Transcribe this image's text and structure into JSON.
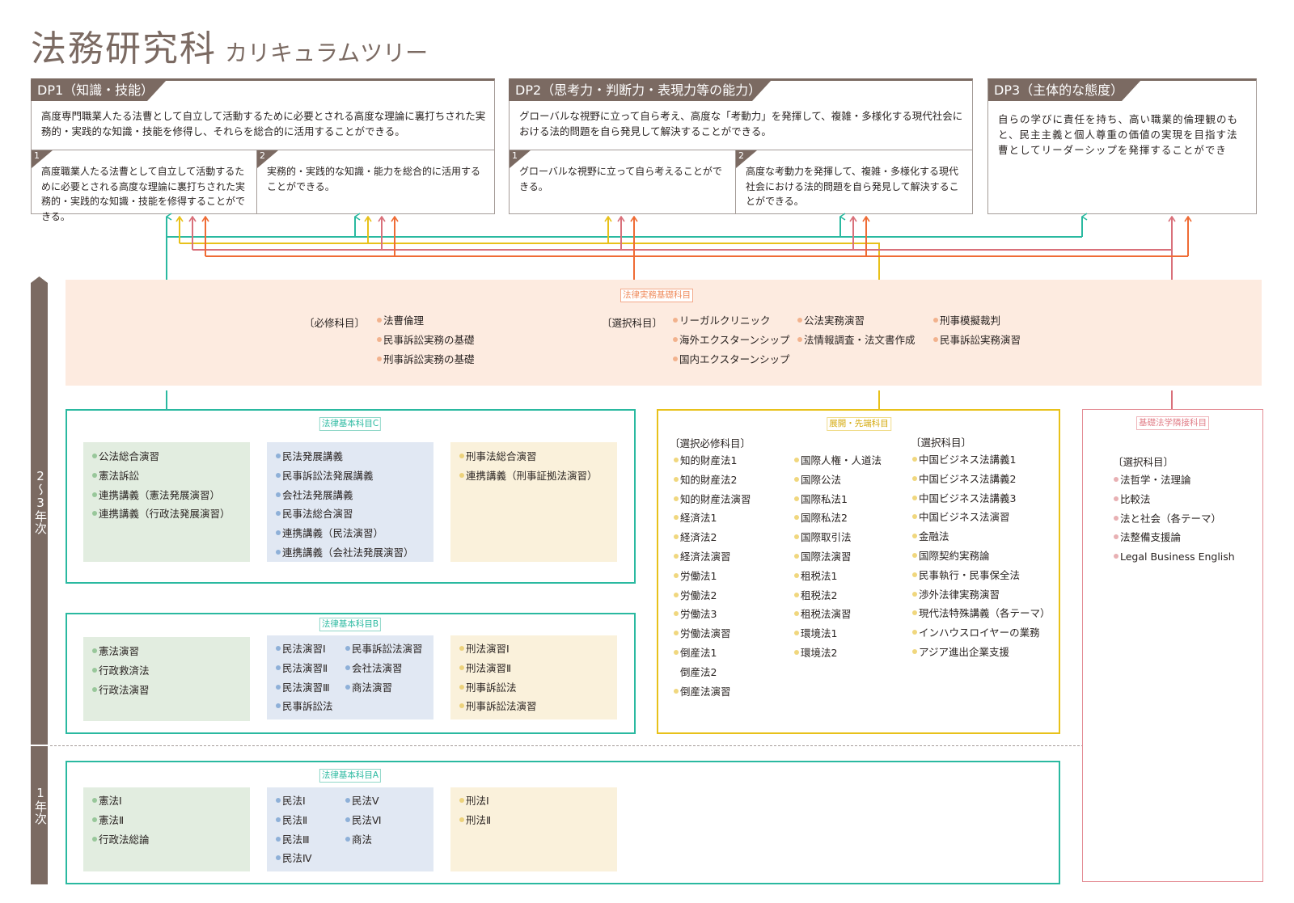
{
  "title": {
    "main": "法務研究科",
    "sub": "カリキュラムツリー"
  },
  "colors": {
    "brown": "#7b6a62",
    "teal": "#2ab9a0",
    "yellow": "#e8c11a",
    "pink": "#d9707a",
    "orange": "#ef6b34",
    "peach_bg": "#fdebe0",
    "green_panel": "#e2ede0",
    "blue_panel": "#e1e8f3",
    "cream_panel": "#faf1db"
  },
  "dp": [
    {
      "title": "DP1（知識・技能）",
      "desc": "高度専門職業人たる法曹として自立して活動するために必要とされる高度な理論に裏打ちされた実務的・実践的な知識・技能を修得し、それらを総合的に活用することができる。",
      "subs": [
        {
          "num": "1",
          "text": "高度職業人たる法曹として自立して活動するために必要とされる高度な理論に裏打ちされた実務的・実践的な知識・技能を修得することができる。"
        },
        {
          "num": "2",
          "text": "実務的・実践的な知識・能力を総合的に活用することができる。"
        }
      ]
    },
    {
      "title": "DP2（思考力・判断力・表現力等の能力）",
      "desc": "グローバルな視野に立って自ら考え、高度な「考動力」を発揮して、複雑・多様化する現代社会における法的問題を自ら発見して解決することができる。",
      "subs": [
        {
          "num": "1",
          "text": "グローバルな視野に立って自ら考えることができる。"
        },
        {
          "num": "2",
          "text": "高度な考動力を発揮して、複雑・多様化する現代社会における法的問題を自ら発見して解決することができる。"
        }
      ]
    },
    {
      "title": "DP3（主体的な態度）",
      "desc": "自らの学びに責任を持ち、高い職業的倫理観のもと、民主主義と個人尊重の価値の実現を目指す法曹としてリーダーシップを発揮することができ"
    }
  ],
  "years": {
    "upper": "2〜3年次",
    "lower": "1年次"
  },
  "practice": {
    "label": "法律実務基礎科目",
    "required_header": "〔必修科目〕",
    "elective_header": "〔選択科目〕",
    "required": [
      [
        "法曹倫理",
        "民事訴訟実務の基礎",
        "刑事訴訟実務の基礎"
      ]
    ],
    "elective": [
      [
        "リーガルクリニック",
        "海外エクスターンシップ",
        "国内エクスターンシップ"
      ],
      [
        "公法実務演習",
        "法情報調査・法文書作成"
      ],
      [
        "刑事模擬裁判",
        "民事訴訟実務演習"
      ]
    ]
  },
  "basicC": {
    "label": "法律基本科目C",
    "green": [
      [
        "公法総合演習",
        "憲法訴訟",
        "連携講義（憲法発展演習）",
        "連携講義（行政法発展演習）"
      ]
    ],
    "blue": [
      [
        "民法発展講義",
        "民事訴訟法発展講義",
        "会社法発展講義",
        "民事法総合演習",
        "連携講義（民法演習）",
        "連携講義（会社法発展演習）"
      ]
    ],
    "cream": [
      [
        "刑事法総合演習",
        "連携講義（刑事証拠法演習）"
      ]
    ]
  },
  "basicB": {
    "label": "法律基本科目B",
    "green": [
      [
        "憲法演習",
        "行政救済法",
        "行政法演習"
      ]
    ],
    "blue": [
      [
        "民法演習Ⅰ",
        "民法演習Ⅱ",
        "民法演習Ⅲ",
        "民事訴訟法"
      ],
      [
        "民事訴訟法演習",
        "会社法演習",
        "商法演習"
      ]
    ],
    "cream": [
      [
        "刑法演習Ⅰ",
        "刑法演習Ⅱ",
        "刑事訴訟法",
        "刑事訴訟法演習"
      ]
    ]
  },
  "basicA": {
    "label": "法律基本科目A",
    "green": [
      [
        "憲法Ⅰ",
        "憲法Ⅱ",
        "行政法総論"
      ]
    ],
    "blue": [
      [
        "民法Ⅰ",
        "民法Ⅱ",
        "民法Ⅲ",
        "民法Ⅳ"
      ],
      [
        "民法Ⅴ",
        "民法Ⅵ",
        "商法"
      ]
    ],
    "cream": [
      [
        "刑法Ⅰ",
        "刑法Ⅱ"
      ]
    ]
  },
  "advanced": {
    "label": "展開・先端科目",
    "required_header": "〔選択必修科目〕",
    "elective_header": "〔選択科目〕",
    "required": [
      [
        "知的財産法1",
        "知的財産法2",
        "知的財産法演習",
        "経済法1",
        "経済法2",
        "経済法演習",
        "労働法1",
        "労働法2",
        "労働法3",
        "労働法演習",
        "倒産法1",
        "倒産法2",
        "倒産法演習"
      ],
      [
        "国際人権・人道法",
        "国際公法",
        "国際私法1",
        "国際私法2",
        "国際取引法",
        "国際法演習",
        "租税法1",
        "租税法2",
        "租税法演習",
        "環境法1",
        "環境法2"
      ]
    ],
    "elective": [
      [
        "中国ビジネス法講義1",
        "中国ビジネス法講義2",
        "中国ビジネス法講義3",
        "中国ビジネス法演習",
        "金融法",
        "国際契約実務論",
        "民事執行・民事保全法",
        "渉外法律実務演習",
        "現代法特殊講義（各テーマ）",
        "インハウスロイヤーの業務",
        "アジア進出企業支援"
      ]
    ]
  },
  "jurisprudence": {
    "label": "基礎法学隣接科目",
    "elective_header": "〔選択科目〕",
    "elective": [
      [
        "法哲学・法理論",
        "比較法",
        "法と社会（各テーマ）",
        "法整備支援論",
        "Legal Business English"
      ]
    ]
  }
}
